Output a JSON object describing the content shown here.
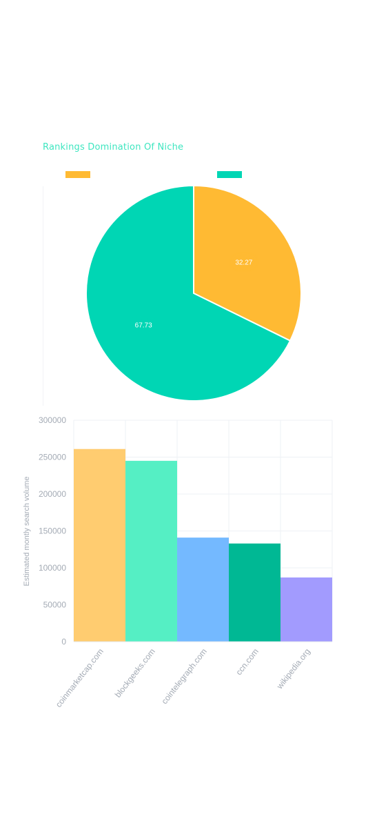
{
  "pie_chart": {
    "title": "Rankings Domination Of Niche",
    "colors": [
      "#ffba33",
      "#00d6b4"
    ]
  },
  "bar_chart": {
    "ylabel": "Estimated montly search volume",
    "colors": [
      "#ffcc70",
      "#55efc4",
      "#74b9ff",
      "#00b894",
      "#a29bfe"
    ]
  },
  "chart_data": [
    {
      "type": "pie",
      "title": "Rankings Domination Of Niche",
      "legend_placement": "top",
      "legend": [
        "",
        ""
      ],
      "slices": [
        {
          "label": "",
          "value": 32.27,
          "display": "32.27",
          "color": "#ffba33"
        },
        {
          "label": "",
          "value": 67.73,
          "display": "67.73",
          "color": "#00d6b4"
        }
      ]
    },
    {
      "type": "bar",
      "categories": [
        "coinmarketcap.com",
        "blockgeeks.com",
        "cointelegraph.com",
        "ccn.com",
        "wikipedia.org"
      ],
      "values": [
        261000,
        245000,
        141000,
        133000,
        87000
      ],
      "ylabel": "Estimated montly search volume",
      "xlabel": "",
      "ylim": [
        0,
        300000
      ],
      "yticks": [
        "0",
        "50000",
        "100000",
        "150000",
        "200000",
        "250000",
        "300000"
      ],
      "grid": true
    }
  ]
}
